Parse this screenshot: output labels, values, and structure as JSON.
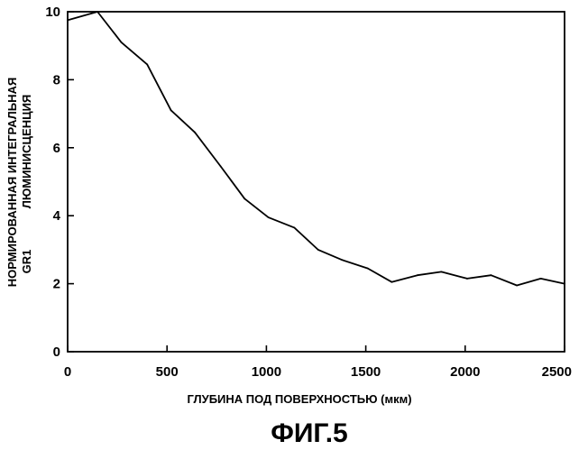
{
  "chart_data": {
    "type": "line",
    "title": "",
    "caption": "ФИГ.5",
    "xlabel": "ГЛУБИНА ПОД ПОВЕРХНОСТЬЮ (мкм)",
    "ylabel_lines": [
      "НОРМИРОВАННАЯ ИНТЕГРАЛЬНАЯ",
      "GR1",
      "ЛЮМИНИСЦЕНЦИЯ"
    ],
    "xlim": [
      0,
      2500
    ],
    "ylim": [
      0,
      10
    ],
    "x_ticks": [
      0,
      500,
      1000,
      1500,
      2000,
      2500
    ],
    "y_ticks": [
      0,
      2,
      4,
      6,
      8,
      10
    ],
    "grid": false,
    "series": [
      {
        "x": [
          0,
          150,
          270,
          400,
          520,
          640,
          770,
          890,
          1010,
          1140,
          1260,
          1380,
          1510,
          1630,
          1760,
          1880,
          2010,
          2130,
          2260,
          2380,
          2500
        ],
        "y": [
          9.75,
          10.0,
          9.1,
          8.45,
          7.1,
          6.45,
          5.45,
          4.5,
          3.95,
          3.65,
          3.0,
          2.7,
          2.45,
          2.05,
          2.25,
          2.35,
          2.15,
          2.25,
          1.95,
          2.15,
          2.0
        ]
      }
    ]
  }
}
